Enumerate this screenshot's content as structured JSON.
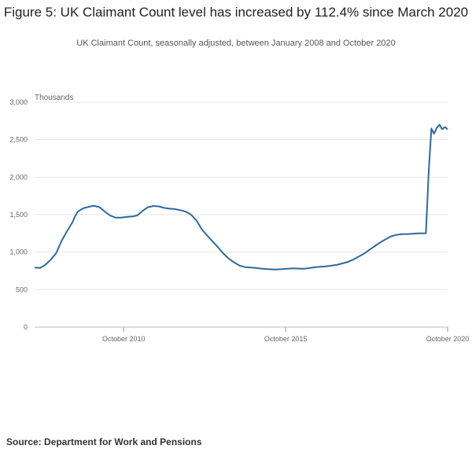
{
  "chart_data": {
    "type": "line",
    "title": "Figure 5: UK Claimant Count level has increased by 112.4% since March 2020",
    "subtitle": "UK Claimant Count, seasonally adjusted, between January 2008 and October 2020",
    "ylabel": "Thousands",
    "xlabel": "",
    "ylim": [
      0,
      3000
    ],
    "yticks": [
      0,
      500,
      1000,
      1500,
      2000,
      2500,
      3000
    ],
    "ytick_labels": [
      "0",
      "500",
      "1,000",
      "1,500",
      "2,000",
      "2,500",
      "3,000"
    ],
    "xlim": [
      2008.0,
      2020.75
    ],
    "xticks": [
      2010.75,
      2015.75,
      2020.75
    ],
    "xtick_labels": [
      "October 2010",
      "October 2015",
      "October 2020"
    ],
    "grid": true,
    "series": [
      {
        "name": "UK Claimant Count",
        "color": "#2e6a9e",
        "x": [
          2008.0,
          2008.17,
          2008.33,
          2008.5,
          2008.67,
          2008.83,
          2009.0,
          2009.17,
          2009.25,
          2009.33,
          2009.5,
          2009.67,
          2009.83,
          2010.0,
          2010.17,
          2010.33,
          2010.5,
          2010.67,
          2010.83,
          2011.0,
          2011.17,
          2011.33,
          2011.5,
          2011.67,
          2011.83,
          2012.0,
          2012.17,
          2012.33,
          2012.5,
          2012.67,
          2012.83,
          2013.0,
          2013.17,
          2013.33,
          2013.5,
          2013.67,
          2013.83,
          2014.0,
          2014.17,
          2014.33,
          2014.5,
          2014.67,
          2014.83,
          2015.0,
          2015.17,
          2015.33,
          2015.5,
          2015.67,
          2015.83,
          2016.0,
          2016.17,
          2016.33,
          2016.5,
          2016.67,
          2016.83,
          2017.0,
          2017.17,
          2017.33,
          2017.5,
          2017.67,
          2017.83,
          2018.0,
          2018.17,
          2018.33,
          2018.5,
          2018.67,
          2018.83,
          2019.0,
          2019.17,
          2019.33,
          2019.5,
          2019.67,
          2019.83,
          2020.0,
          2020.08,
          2020.17,
          2020.25,
          2020.33,
          2020.42,
          2020.5,
          2020.58,
          2020.67,
          2020.75
        ],
        "values": [
          795,
          790,
          830,
          900,
          990,
          1150,
          1280,
          1400,
          1480,
          1540,
          1585,
          1605,
          1620,
          1600,
          1540,
          1490,
          1460,
          1460,
          1470,
          1475,
          1490,
          1550,
          1600,
          1615,
          1610,
          1590,
          1580,
          1575,
          1560,
          1540,
          1500,
          1420,
          1300,
          1220,
          1140,
          1060,
          980,
          910,
          860,
          820,
          800,
          795,
          790,
          780,
          775,
          770,
          770,
          775,
          780,
          785,
          780,
          778,
          790,
          800,
          805,
          810,
          820,
          830,
          850,
          870,
          900,
          940,
          980,
          1030,
          1080,
          1130,
          1170,
          1210,
          1230,
          1240,
          1240,
          1245,
          1250,
          1250,
          1250,
          2100,
          2650,
          2580,
          2660,
          2700,
          2640,
          2670,
          2640
        ]
      }
    ]
  },
  "source": {
    "label": "Source: Department for Work and Pensions"
  }
}
